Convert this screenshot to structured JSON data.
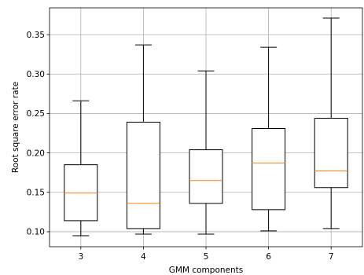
{
  "chart_data": {
    "type": "box",
    "title": "",
    "xlabel": "GMM components",
    "ylabel": "Root square error rate",
    "categories": [
      "3",
      "4",
      "5",
      "6",
      "7"
    ],
    "boxes": [
      {
        "category": "3",
        "whisker_low": 0.095,
        "q1": 0.114,
        "median": 0.149,
        "q3": 0.185,
        "whisker_high": 0.266
      },
      {
        "category": "4",
        "whisker_low": 0.097,
        "q1": 0.104,
        "median": 0.136,
        "q3": 0.239,
        "whisker_high": 0.337
      },
      {
        "category": "5",
        "whisker_low": 0.097,
        "q1": 0.136,
        "median": 0.165,
        "q3": 0.204,
        "whisker_high": 0.304
      },
      {
        "category": "6",
        "whisker_low": 0.101,
        "q1": 0.128,
        "median": 0.187,
        "q3": 0.231,
        "whisker_high": 0.334
      },
      {
        "category": "7",
        "whisker_low": 0.104,
        "q1": 0.156,
        "median": 0.177,
        "q3": 0.244,
        "whisker_high": 0.371
      }
    ],
    "ylim": [
      0.081,
      0.384
    ],
    "yticks": [
      "0.10",
      "0.15",
      "0.20",
      "0.25",
      "0.30",
      "0.35"
    ],
    "grid": true,
    "colors": {
      "box": "#000000",
      "median": "#ff7f0e",
      "grid": "#b0b0b0"
    }
  }
}
